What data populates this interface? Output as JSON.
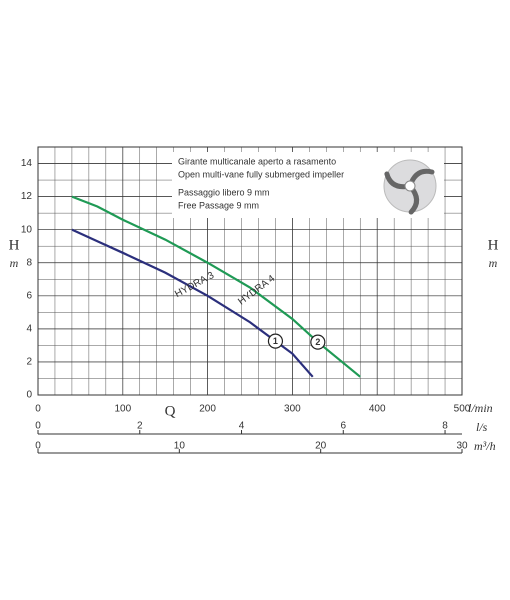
{
  "chart_data": {
    "type": "line",
    "xlim": [
      0,
      500
    ],
    "xticks": [
      0,
      100,
      200,
      300,
      400,
      500
    ],
    "xlabel": "l/min",
    "x2lim": [
      0,
      8.3333
    ],
    "x2ticks": [
      0,
      2,
      4,
      6,
      8
    ],
    "x2label": "l/s",
    "x3lim": [
      0,
      30
    ],
    "x3ticks": [
      0,
      10,
      20,
      30
    ],
    "x3label": "m³/h",
    "ylim": [
      0,
      15
    ],
    "yticks": [
      0,
      2,
      4,
      6,
      8,
      10,
      12,
      14
    ],
    "ylabel": "H",
    "yunit": "m",
    "qlabel": "Q",
    "grid": true,
    "annotations": [
      "Girante multicanale aperto a rasamento",
      "Open multi-vane fully submerged impeller",
      "Passaggio libero 9 mm",
      "Free Passage 9 mm"
    ],
    "series": [
      {
        "name": "HYDRA 3",
        "marker": "1",
        "color": "#2b2f7c",
        "x": [
          40,
          70,
          100,
          150,
          200,
          250,
          300,
          324
        ],
        "values": [
          10,
          9.3,
          8.6,
          7.4,
          6.0,
          4.4,
          2.5,
          1.1
        ]
      },
      {
        "name": "HYDRA 4",
        "marker": "2",
        "color": "#1f9a55",
        "x": [
          40,
          70,
          100,
          150,
          200,
          250,
          300,
          330,
          380
        ],
        "values": [
          12,
          11.4,
          10.6,
          9.4,
          8.0,
          6.5,
          4.6,
          3.2,
          1.1
        ]
      }
    ]
  }
}
